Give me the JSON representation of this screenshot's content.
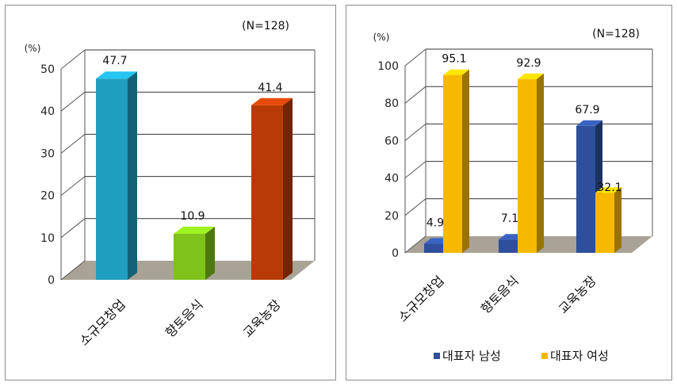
{
  "colors": {
    "left_bars": [
      "#1f9ec0",
      "#7ec21a",
      "#b83a06"
    ],
    "male": "#2e4f9c",
    "female": "#f6b800",
    "floor": "#a8a396",
    "wall_line": "#555555",
    "grid": "#333333"
  },
  "chart_data": [
    {
      "type": "bar",
      "n_label": "(N=128)",
      "unit_label": "(%)",
      "categories": [
        "소규모창업",
        "향토음식",
        "교육농장"
      ],
      "values": [
        47.7,
        10.9,
        41.4
      ],
      "value_labels": [
        "47.7",
        "10.9",
        "41.4"
      ],
      "yticks": [
        "0",
        "10",
        "20",
        "30",
        "40",
        "50"
      ],
      "ylim": [
        0,
        50
      ]
    },
    {
      "type": "bar",
      "n_label": "(N=128)",
      "unit_label": "(%)",
      "categories": [
        "소규모창업",
        "향토음식",
        "교육농장"
      ],
      "series": [
        {
          "name": "대표자 남성",
          "values": [
            4.9,
            7.1,
            67.9
          ],
          "value_labels": [
            "4.9",
            "7.1",
            "67.9"
          ]
        },
        {
          "name": "대표자 여성",
          "values": [
            95.1,
            92.9,
            32.1
          ],
          "value_labels": [
            "95.1",
            "92.9",
            "32.1"
          ]
        }
      ],
      "yticks": [
        "0",
        "20",
        "40",
        "60",
        "80",
        "100"
      ],
      "ylim": [
        0,
        100
      ],
      "legend_position": "bottom"
    }
  ]
}
